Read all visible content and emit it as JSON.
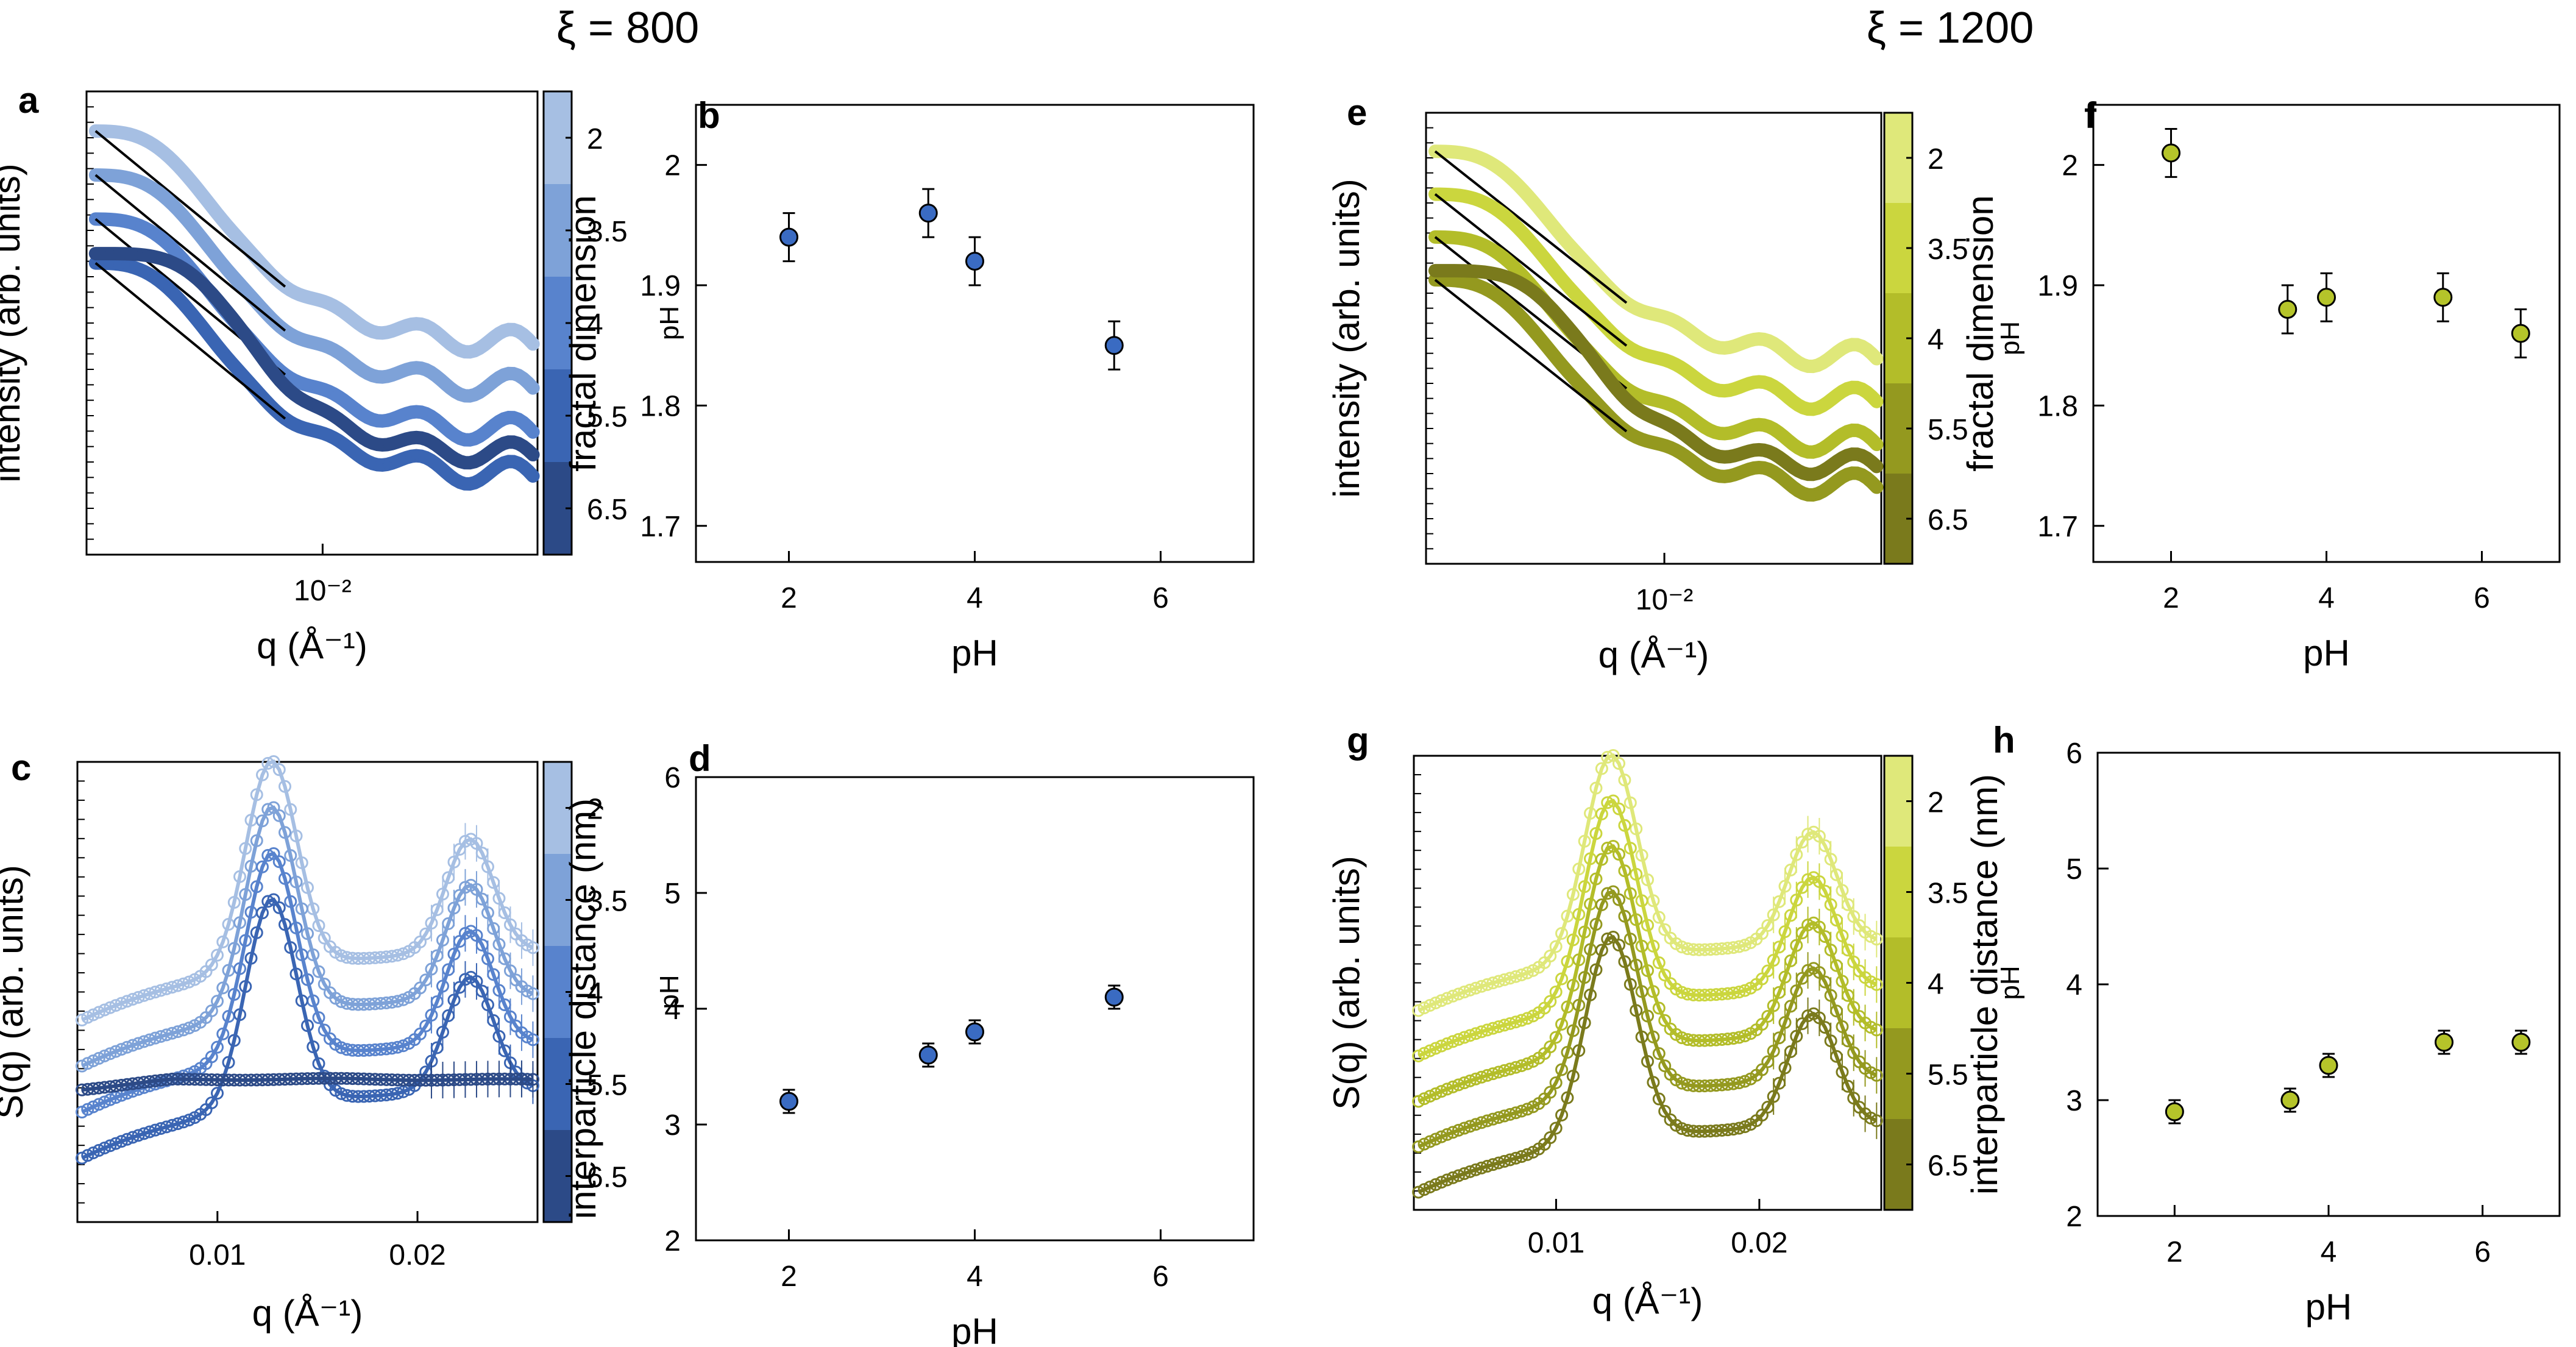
{
  "column_headers": [
    "ξ = 800",
    "ξ = 1200"
  ],
  "colorbar": {
    "label": "pH",
    "ticks": [
      "2",
      "3.5",
      "4",
      "5.5",
      "6.5"
    ]
  },
  "palettes": {
    "blue": [
      "#a6bfe3",
      "#7ea2d8",
      "#5883cd",
      "#3a65b3",
      "#2c4a87"
    ],
    "olive": [
      "#dfe87a",
      "#cbd63e",
      "#b3bd29",
      "#94991f",
      "#7a7a1c"
    ]
  },
  "chart_data": [
    {
      "panel": "a",
      "type": "scatter",
      "xlabel": "q (Å⁻¹)",
      "ylabel": "intensity (arb. units)",
      "xscale": "log",
      "xlim": [
        0.0035,
        0.026
      ],
      "x_tick_labels": [
        "10⁻²"
      ],
      "palette": "blue",
      "series": [
        {
          "name": "pH 2",
          "offset": 0
        },
        {
          "name": "pH 3.5",
          "offset": 1
        },
        {
          "name": "pH 4",
          "offset": 2
        },
        {
          "name": "pH 5.5",
          "offset": 3
        },
        {
          "name": "pH 6.5",
          "offset": 4
        }
      ]
    },
    {
      "panel": "b",
      "type": "scatter",
      "xlabel": "pH",
      "ylabel": "fractal dimension",
      "xlim": [
        1,
        7
      ],
      "ylim": [
        1.67,
        2.05
      ],
      "x_ticks": [
        2,
        4,
        6
      ],
      "y_ticks": [
        1.7,
        1.8,
        1.9,
        2
      ],
      "y_tick_labels": [
        "1.7",
        "1.8",
        "1.9",
        "2"
      ],
      "color": "#3a6bc2",
      "points": [
        {
          "x": 2,
          "y": 1.94,
          "err": 0.02
        },
        {
          "x": 3.5,
          "y": 1.96,
          "err": 0.02
        },
        {
          "x": 4,
          "y": 1.92,
          "err": 0.02
        },
        {
          "x": 5.5,
          "y": 1.85,
          "err": 0.02
        }
      ]
    },
    {
      "panel": "c",
      "type": "scatter",
      "xlabel": "q (Å⁻¹)",
      "ylabel": "S(q) (arb. units)",
      "xlim": [
        0.003,
        0.026
      ],
      "x_ticks": [
        0.01,
        0.02
      ],
      "x_tick_labels": [
        "0.01",
        "0.02"
      ],
      "palette": "blue",
      "series": [
        {
          "name": "pH 2",
          "offset": 0
        },
        {
          "name": "pH 3.5",
          "offset": 1
        },
        {
          "name": "pH 4",
          "offset": 2
        },
        {
          "name": "pH 5.5",
          "offset": 3
        },
        {
          "name": "pH 6.5",
          "offset": 4
        }
      ]
    },
    {
      "panel": "d",
      "type": "scatter",
      "xlabel": "pH",
      "ylabel": "interparticle distance (nm)",
      "xlim": [
        1,
        7
      ],
      "ylim": [
        2,
        6
      ],
      "x_ticks": [
        2,
        4,
        6
      ],
      "y_ticks": [
        2,
        3,
        4,
        5,
        6
      ],
      "y_tick_labels": [
        "2",
        "3",
        "4",
        "5",
        "6"
      ],
      "color": "#3a6bc2",
      "points": [
        {
          "x": 2,
          "y": 3.2,
          "err": 0.1
        },
        {
          "x": 3.5,
          "y": 3.6,
          "err": 0.1
        },
        {
          "x": 4,
          "y": 3.8,
          "err": 0.1
        },
        {
          "x": 5.5,
          "y": 4.1,
          "err": 0.1
        }
      ]
    },
    {
      "panel": "e",
      "type": "scatter",
      "xlabel": "q (Å⁻¹)",
      "ylabel": "intensity (arb. units)",
      "xscale": "log",
      "xlim": [
        0.0035,
        0.026
      ],
      "x_tick_labels": [
        "10⁻²"
      ],
      "palette": "olive",
      "series": [
        {
          "name": "pH 2",
          "offset": 0
        },
        {
          "name": "pH 3.5",
          "offset": 1
        },
        {
          "name": "pH 4",
          "offset": 2
        },
        {
          "name": "pH 5.5",
          "offset": 3
        },
        {
          "name": "pH 6.5",
          "offset": 4
        }
      ]
    },
    {
      "panel": "f",
      "type": "scatter",
      "xlabel": "pH",
      "ylabel": "fractal dimension",
      "xlim": [
        1,
        7
      ],
      "ylim": [
        1.67,
        2.05
      ],
      "x_ticks": [
        2,
        4,
        6
      ],
      "y_ticks": [
        1.7,
        1.8,
        1.9,
        2
      ],
      "y_tick_labels": [
        "1.7",
        "1.8",
        "1.9",
        "2"
      ],
      "color": "#b5c42a",
      "points": [
        {
          "x": 2,
          "y": 2.01,
          "err": 0.02
        },
        {
          "x": 3.5,
          "y": 1.88,
          "err": 0.02
        },
        {
          "x": 4,
          "y": 1.89,
          "err": 0.02
        },
        {
          "x": 5.5,
          "y": 1.89,
          "err": 0.02
        },
        {
          "x": 6.5,
          "y": 1.86,
          "err": 0.02
        }
      ]
    },
    {
      "panel": "g",
      "type": "scatter",
      "xlabel": "q (Å⁻¹)",
      "ylabel": "S(q) (arb. units)",
      "xlim": [
        0.003,
        0.026
      ],
      "x_ticks": [
        0.01,
        0.02
      ],
      "x_tick_labels": [
        "0.01",
        "0.02"
      ],
      "palette": "olive",
      "series": [
        {
          "name": "pH 2",
          "offset": 0
        },
        {
          "name": "pH 3.5",
          "offset": 1
        },
        {
          "name": "pH 4",
          "offset": 2
        },
        {
          "name": "pH 5.5",
          "offset": 3
        },
        {
          "name": "pH 6.5",
          "offset": 4
        }
      ]
    },
    {
      "panel": "h",
      "type": "scatter",
      "xlabel": "pH",
      "ylabel": "interparticle distance (nm)",
      "xlim": [
        1,
        7
      ],
      "ylim": [
        2,
        6
      ],
      "x_ticks": [
        2,
        4,
        6
      ],
      "y_ticks": [
        2,
        3,
        4,
        5,
        6
      ],
      "y_tick_labels": [
        "2",
        "3",
        "4",
        "5",
        "6"
      ],
      "color": "#b5c42a",
      "points": [
        {
          "x": 2,
          "y": 2.9,
          "err": 0.1
        },
        {
          "x": 3.5,
          "y": 3.0,
          "err": 0.1
        },
        {
          "x": 4,
          "y": 3.3,
          "err": 0.1
        },
        {
          "x": 5.5,
          "y": 3.5,
          "err": 0.1
        },
        {
          "x": 6.5,
          "y": 3.5,
          "err": 0.1
        }
      ]
    }
  ]
}
